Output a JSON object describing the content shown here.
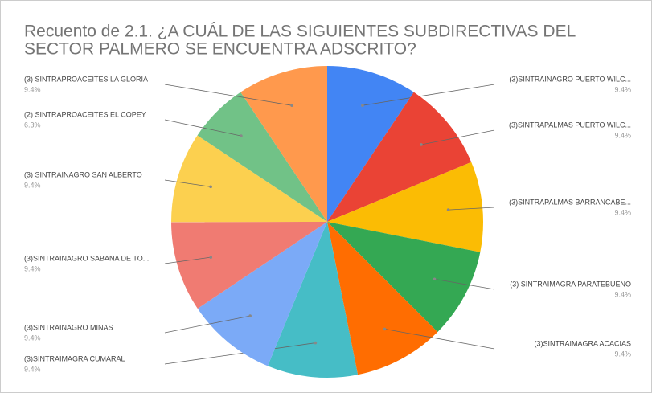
{
  "chart_data": {
    "type": "pie",
    "title": [
      "Recuento de 2.1. ¿A CUÁL DE LAS SIGUIENTES SUBDIRECTIVAS DEL",
      "SECTOR PALMERO SE ENCUENTRA ADSCRITO?"
    ],
    "categories": [
      "(3)SINTRAINAGRO PUERTO WILC...",
      "(3)SINTRAPALMAS PUERTO WILC...",
      "(3)SINTRAPALMAS BARRANCABE...",
      "(3) SINTRAIMAGRA PARATEBUENO",
      "(3)SINTRAIMAGRA ACACIAS",
      "(3)SINTRAIMAGRA CUMARAL",
      "(3)SINTRAINAGRO MINAS",
      "(3)SINTRAINAGRO SABANA DE TO...",
      "(3) SINTRAINAGRO SAN ALBERTO",
      "(2) SINTRAPROACEITES EL COPEY",
      "(3) SINTRAPROACEITES LA GLORIA"
    ],
    "values": [
      9.4,
      9.4,
      9.4,
      9.4,
      9.4,
      9.4,
      9.4,
      9.4,
      9.4,
      6.3,
      9.4
    ],
    "value_labels": [
      "9.4%",
      "9.4%",
      "9.4%",
      "9.4%",
      "9.4%",
      "9.4%",
      "9.4%",
      "9.4%",
      "9.4%",
      "6.3%",
      "9.4%"
    ],
    "colors": [
      "#4285f4",
      "#ea4335",
      "#fbbc04",
      "#34a853",
      "#ff6d01",
      "#46bdc6",
      "#7baaf7",
      "#f07b72",
      "#fcd04f",
      "#71c287",
      "#ff994d"
    ]
  }
}
